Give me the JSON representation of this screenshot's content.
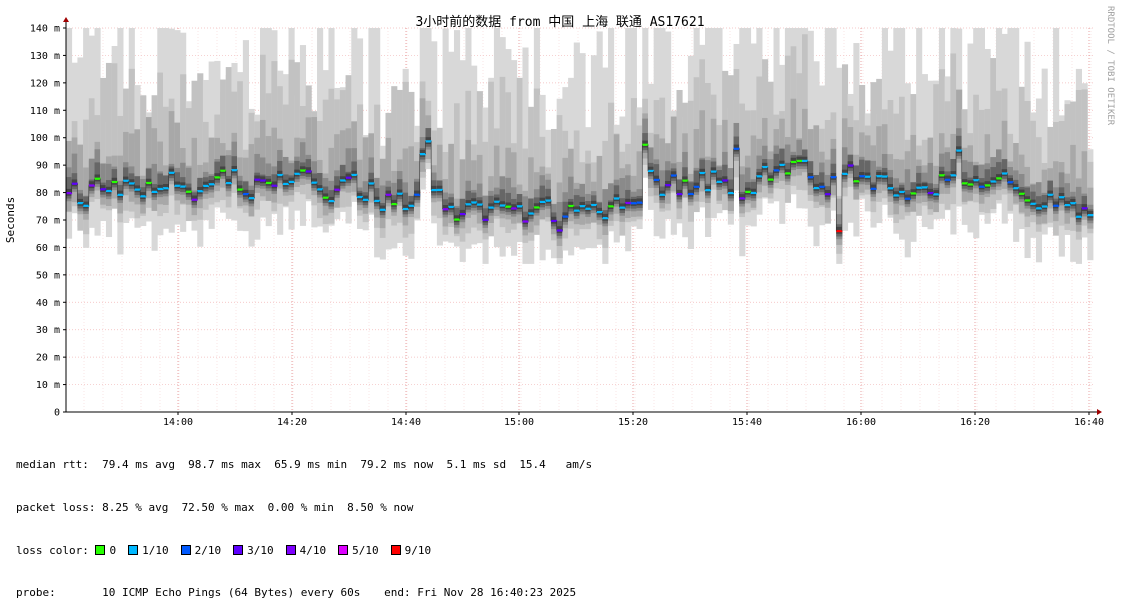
{
  "title": "3小时前的数据 from 中国 上海 联通 AS17621",
  "side_text": "RRDTOOL / TOBI OETIKER",
  "chart_data": {
    "type": "area",
    "title": "3小时前的数据 from 中国 上海 联通 AS17621",
    "ylabel": "Seconds",
    "ylim": [
      0,
      140
    ],
    "y_unit": "ms",
    "y_ticks": [
      "0",
      "10 m",
      "20 m",
      "30 m",
      "40 m",
      "50 m",
      "60 m",
      "70 m",
      "80 m",
      "90 m",
      "100 m",
      "110 m",
      "120 m",
      "130 m",
      "140 m"
    ],
    "x_ticks": [
      "14:00",
      "14:20",
      "14:40",
      "15:00",
      "15:20",
      "15:40",
      "16:00",
      "16:20",
      "16:40"
    ],
    "grid": true,
    "median_rtt_ms": {
      "avg": 79.4,
      "max": 98.7,
      "min": 65.9,
      "now": 79.2,
      "sd": 5.1
    },
    "packet_loss_pct": {
      "avg": 8.25,
      "max": 72.5,
      "min": 0.0,
      "now": 8.5
    }
  },
  "stats": {
    "median_rtt": "median rtt:  79.4 ms avg  98.7 ms max  65.9 ms min  79.2 ms now  5.1 ms sd  15.4   am/s",
    "packet_loss": "packet loss: 8.25 % avg  72.50 % max  0.00 % min  8.50 % now",
    "loss_color_label": "loss color:",
    "probe": "probe:       10 ICMP Echo Pings (64 Bytes) every 60s",
    "end": "end: Fri Nov 28 16:40:23 2025"
  },
  "loss_colors": [
    {
      "label": "0",
      "color": "#26ff00"
    },
    {
      "label": "1/10",
      "color": "#00b8ff"
    },
    {
      "label": "2/10",
      "color": "#0059ff"
    },
    {
      "label": "3/10",
      "color": "#5e00ff"
    },
    {
      "label": "4/10",
      "color": "#7e00ff"
    },
    {
      "label": "5/10",
      "color": "#dd00ff"
    },
    {
      "label": "9/10",
      "color": "#ff0000"
    }
  ]
}
